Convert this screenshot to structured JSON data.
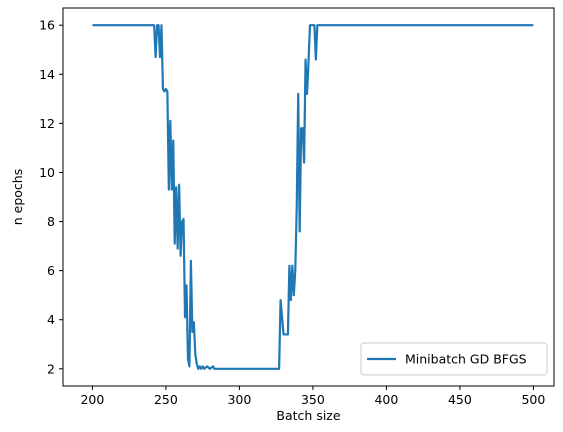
{
  "chart_data": {
    "type": "line",
    "title": "",
    "xlabel": "Batch size",
    "ylabel": "n epochs",
    "xlim": [
      180,
      514
    ],
    "ylim": [
      1.3,
      16.7
    ],
    "xticks": [
      200,
      250,
      300,
      350,
      400,
      450,
      500
    ],
    "yticks": [
      2,
      4,
      6,
      8,
      10,
      12,
      14,
      16
    ],
    "grid": false,
    "legend_position": "lower-right",
    "series": [
      {
        "name": "Minibatch GD BFGS",
        "color": "#1f77b4",
        "x": [
          200,
          242,
          243,
          244,
          245,
          246,
          247,
          248,
          249,
          250,
          251,
          252,
          253,
          254,
          255,
          256,
          257,
          258,
          259,
          260,
          261,
          262,
          263,
          264,
          265,
          266,
          267,
          268,
          269,
          270,
          271,
          272,
          273,
          274,
          275,
          276,
          278,
          280,
          282,
          283,
          300,
          327,
          328,
          329,
          330,
          331,
          333,
          334,
          335,
          336,
          337,
          338,
          339,
          340,
          341,
          342,
          343,
          344,
          345,
          346,
          347,
          348,
          349,
          350,
          351,
          352,
          353,
          354,
          355,
          356,
          360,
          400,
          450,
          500
        ],
        "y": [
          16.0,
          16.0,
          14.7,
          16.0,
          16.0,
          14.7,
          16.0,
          13.4,
          13.3,
          13.4,
          13.3,
          9.3,
          12.1,
          9.3,
          11.3,
          7.1,
          9.4,
          6.9,
          9.5,
          6.6,
          8.0,
          8.1,
          4.1,
          5.4,
          2.4,
          2.1,
          6.4,
          3.5,
          3.9,
          2.6,
          2.2,
          2.0,
          2.1,
          2.0,
          2.1,
          2.0,
          2.1,
          2.0,
          2.1,
          2.0,
          2.0,
          2.0,
          4.8,
          4.1,
          3.4,
          3.4,
          3.4,
          6.2,
          4.8,
          6.2,
          5.0,
          6.0,
          8.6,
          13.2,
          7.6,
          11.8,
          11.8,
          10.4,
          14.6,
          13.2,
          14.5,
          16.0,
          16.0,
          16.0,
          16.0,
          14.6,
          16.0,
          16.0,
          16.0,
          16.0,
          16.0,
          16.0,
          16.0,
          16.0
        ]
      }
    ]
  }
}
